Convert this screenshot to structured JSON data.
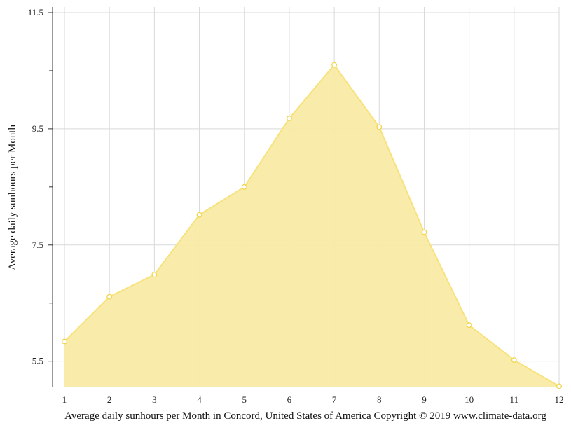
{
  "chart_data": {
    "type": "area",
    "xlabel": "Average daily sunhours per Month in Concord, United States of America Copyright © 2019 www.climate-data.org",
    "ylabel": "Average daily sunhours per Month",
    "x": [
      1,
      2,
      3,
      4,
      5,
      6,
      7,
      8,
      9,
      10,
      11,
      12
    ],
    "x_tick_labels": [
      "1",
      "2",
      "3",
      "4",
      "5",
      "6",
      "7",
      "8",
      "9",
      "10",
      "11",
      "12"
    ],
    "y_tick_labels": [
      "11.5",
      "9.5",
      "7.5",
      "5.5"
    ],
    "y_tick_values": [
      11.5,
      9.5,
      7.5,
      5.5
    ],
    "y_minor_ticks": [
      10.5,
      8.5,
      6.5
    ],
    "ylim": [
      5.05,
      11.5
    ],
    "xlim": [
      1,
      12
    ],
    "grid": true,
    "series": [
      {
        "values": [
          5.84,
          6.61,
          6.99,
          8.02,
          8.5,
          9.68,
          10.6,
          9.53,
          7.72,
          6.12,
          5.52,
          5.07
        ]
      }
    ],
    "colors": {
      "fill": "#f9eaa4",
      "line": "#f7e27d",
      "marker_stroke": "#f2d54a",
      "grid": "#d9d9d9",
      "axis": "#333333"
    }
  }
}
